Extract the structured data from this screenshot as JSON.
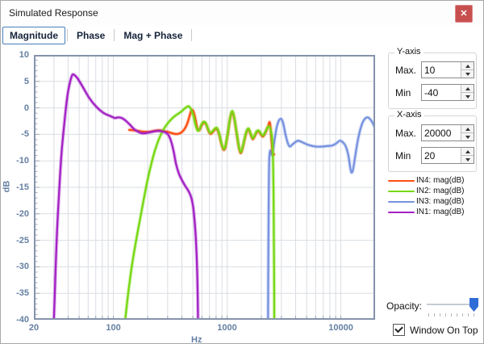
{
  "window": {
    "title": "Simulated Response",
    "close_glyph": "✕"
  },
  "tabs": [
    {
      "label": "Magnitude",
      "selected": true
    },
    {
      "label": "Phase",
      "selected": false
    },
    {
      "label": "Mag + Phase",
      "selected": false
    }
  ],
  "controls": {
    "y_axis": {
      "title": "Y-axis",
      "max_label": "Max.",
      "max_value": "10",
      "min_label": "Min",
      "min_value": "-40"
    },
    "x_axis": {
      "title": "X-axis",
      "max_label": "Max.",
      "max_value": "20000",
      "min_label": "Min",
      "min_value": "20"
    },
    "opacity": {
      "label": "Opacity:",
      "value_percent": 100
    },
    "window_on_top": {
      "label": "Window On Top",
      "checked": true
    }
  },
  "legend": [
    {
      "label": "IN4: mag(dB)",
      "color": "#fd4e12"
    },
    {
      "label": "IN2: mag(dB)",
      "color": "#76d813"
    },
    {
      "label": "IN3: mag(dB)",
      "color": "#7792e0"
    },
    {
      "label": "IN1: mag(dB)",
      "color": "#a322c4"
    }
  ],
  "chart_data": {
    "type": "line",
    "title": "",
    "xlabel": "Hz",
    "ylabel": "dB",
    "x_scale": "log",
    "xlim": [
      20,
      20000
    ],
    "ylim": [
      -40,
      10
    ],
    "x_tick_labels": [
      20,
      100,
      1000,
      10000
    ],
    "y_tick_labels": [
      10,
      5,
      0,
      -5,
      -10,
      -15,
      -20,
      -25,
      -30,
      -35,
      -40
    ],
    "grid": true,
    "legend_position": "right",
    "colors": {
      "grid": "#dadde3",
      "axis_text": "#647fa3",
      "border": "#8593ab"
    },
    "series": [
      {
        "name": "IN3: mag(dB)",
        "color": "#7792e0",
        "points": [
          [
            2290,
            -40
          ],
          [
            2302,
            -30
          ],
          [
            2316,
            -20
          ],
          [
            2330,
            -13
          ],
          [
            2352,
            -9.3
          ],
          [
            2390,
            -8.1
          ],
          [
            2430,
            -8.4
          ],
          [
            2470,
            -8.9
          ],
          [
            2530,
            -8.1
          ],
          [
            2620,
            -5.9
          ],
          [
            2720,
            -3.8
          ],
          [
            2850,
            -2.4
          ],
          [
            3000,
            -2.1
          ],
          [
            3120,
            -3
          ],
          [
            3250,
            -4.9
          ],
          [
            3400,
            -6.5
          ],
          [
            3560,
            -7.3
          ],
          [
            3800,
            -6.8
          ],
          [
            4200,
            -6.2
          ],
          [
            4700,
            -6.6
          ],
          [
            5200,
            -7
          ],
          [
            6000,
            -7.3
          ],
          [
            6800,
            -7.3
          ],
          [
            7600,
            -7.2
          ],
          [
            8400,
            -7.1
          ],
          [
            9100,
            -6.7
          ],
          [
            9800,
            -6.2
          ],
          [
            10400,
            -6.5
          ],
          [
            11000,
            -7.2
          ],
          [
            11600,
            -8.8
          ],
          [
            12100,
            -11.3
          ],
          [
            12400,
            -12.2
          ],
          [
            12800,
            -11.6
          ],
          [
            13400,
            -9
          ],
          [
            14200,
            -5.8
          ],
          [
            15200,
            -3.3
          ],
          [
            16200,
            -2.1
          ],
          [
            17200,
            -1.8
          ],
          [
            18200,
            -2.2
          ],
          [
            19100,
            -2.9
          ],
          [
            20000,
            -3.8
          ]
        ]
      },
      {
        "name": "IN4: mag(dB)",
        "color": "#fd4e12",
        "points": [
          [
            138,
            -4.15
          ],
          [
            160,
            -4.3
          ],
          [
            185,
            -4.5
          ],
          [
            210,
            -4.5
          ],
          [
            235,
            -4.3
          ],
          [
            262,
            -4.25
          ],
          [
            290,
            -4.45
          ],
          [
            318,
            -4.7
          ],
          [
            345,
            -4.9
          ],
          [
            372,
            -4.9
          ],
          [
            398,
            -4.6
          ],
          [
            422,
            -4
          ],
          [
            445,
            -3
          ],
          [
            465,
            -1.7
          ],
          [
            482,
            -0.6
          ],
          [
            495,
            -0.4
          ],
          [
            510,
            -0.9
          ],
          [
            528,
            -2.2
          ],
          [
            548,
            -3.9
          ],
          [
            570,
            -4.2
          ],
          [
            598,
            -3.3
          ],
          [
            625,
            -2.8
          ],
          [
            652,
            -3.1
          ],
          [
            682,
            -4.2
          ],
          [
            712,
            -4.9
          ],
          [
            746,
            -4.6
          ],
          [
            780,
            -4.1
          ],
          [
            815,
            -4
          ],
          [
            850,
            -5
          ],
          [
            890,
            -6.8
          ],
          [
            930,
            -7.9
          ],
          [
            965,
            -7.4
          ],
          [
            1010,
            -5.1
          ],
          [
            1060,
            -2.2
          ],
          [
            1105,
            -0.9
          ],
          [
            1150,
            -1.8
          ],
          [
            1200,
            -4.2
          ],
          [
            1260,
            -7.1
          ],
          [
            1310,
            -8.5
          ],
          [
            1360,
            -7.8
          ],
          [
            1420,
            -6.1
          ],
          [
            1480,
            -4.6
          ],
          [
            1545,
            -4.1
          ],
          [
            1615,
            -5.1
          ],
          [
            1680,
            -5.9
          ],
          [
            1745,
            -5.4
          ],
          [
            1820,
            -4.6
          ],
          [
            1900,
            -4.5
          ],
          [
            1990,
            -5.1
          ],
          [
            2070,
            -5.4
          ],
          [
            2160,
            -4.8
          ],
          [
            2240,
            -4
          ],
          [
            2300,
            -3.4
          ],
          [
            2355,
            -2.7
          ],
          [
            2395,
            -3.3
          ],
          [
            2430,
            -4.8
          ],
          [
            2465,
            -6.6
          ],
          [
            2505,
            -8.2
          ],
          [
            2550,
            -8.8
          ],
          [
            2590,
            -8.8
          ]
        ]
      },
      {
        "name": "IN2: mag(dB)",
        "color": "#76d813",
        "points": [
          [
            127,
            -40
          ],
          [
            135,
            -35
          ],
          [
            145,
            -30
          ],
          [
            157,
            -25.5
          ],
          [
            170,
            -21.5
          ],
          [
            184,
            -17.5
          ],
          [
            198,
            -14
          ],
          [
            213,
            -11
          ],
          [
            230,
            -8.3
          ],
          [
            250,
            -6
          ],
          [
            272,
            -4.3
          ],
          [
            298,
            -3
          ],
          [
            328,
            -2
          ],
          [
            360,
            -1.3
          ],
          [
            395,
            -0.7
          ],
          [
            430,
            0
          ],
          [
            458,
            0.3
          ],
          [
            480,
            -0.2
          ],
          [
            505,
            -1.5
          ],
          [
            530,
            -3.4
          ],
          [
            552,
            -4.3
          ],
          [
            575,
            -3.9
          ],
          [
            600,
            -3
          ],
          [
            625,
            -2.6
          ],
          [
            650,
            -2.9
          ],
          [
            680,
            -4
          ],
          [
            710,
            -4.7
          ],
          [
            745,
            -4.4
          ],
          [
            780,
            -3.9
          ],
          [
            815,
            -3.8
          ],
          [
            850,
            -4.8
          ],
          [
            890,
            -6.6
          ],
          [
            930,
            -7.7
          ],
          [
            965,
            -7.2
          ],
          [
            1010,
            -4.9
          ],
          [
            1060,
            -2
          ],
          [
            1105,
            -0.6
          ],
          [
            1150,
            -1.6
          ],
          [
            1200,
            -4
          ],
          [
            1260,
            -6.9
          ],
          [
            1310,
            -8.3
          ],
          [
            1360,
            -7.6
          ],
          [
            1420,
            -5.9
          ],
          [
            1480,
            -4.4
          ],
          [
            1545,
            -3.9
          ],
          [
            1615,
            -4.9
          ],
          [
            1680,
            -5.7
          ],
          [
            1745,
            -5.2
          ],
          [
            1820,
            -4.4
          ],
          [
            1900,
            -4.3
          ],
          [
            1990,
            -4.9
          ],
          [
            2070,
            -5.2
          ],
          [
            2160,
            -4.6
          ],
          [
            2250,
            -3.8
          ],
          [
            2340,
            -3.5
          ],
          [
            2420,
            -4.3
          ],
          [
            2465,
            -5.2
          ],
          [
            2505,
            -7
          ],
          [
            2535,
            -10
          ],
          [
            2560,
            -16
          ],
          [
            2578,
            -25
          ],
          [
            2592,
            -34
          ],
          [
            2598,
            -40
          ]
        ]
      },
      {
        "name": "IN1: mag(dB)",
        "color": "#a322c4",
        "points": [
          [
            30,
            -40
          ],
          [
            31,
            -31
          ],
          [
            32,
            -23
          ],
          [
            33.5,
            -15
          ],
          [
            35,
            -8.5
          ],
          [
            37,
            -3
          ],
          [
            39,
            1.5
          ],
          [
            41,
            4.3
          ],
          [
            43.5,
            6.2
          ],
          [
            46,
            6.1
          ],
          [
            49,
            5.4
          ],
          [
            54,
            3.9
          ],
          [
            60,
            2.2
          ],
          [
            67,
            0.8
          ],
          [
            75,
            -0.3
          ],
          [
            84,
            -1.1
          ],
          [
            93,
            -1.5
          ],
          [
            103,
            -1.9
          ],
          [
            110,
            -1.8
          ],
          [
            118,
            -1.9
          ],
          [
            128,
            -2.4
          ],
          [
            140,
            -3.2
          ],
          [
            152,
            -4
          ],
          [
            165,
            -4.5
          ],
          [
            180,
            -4.8
          ],
          [
            200,
            -4.7
          ],
          [
            220,
            -4.5
          ],
          [
            245,
            -4.35
          ],
          [
            270,
            -4.45
          ],
          [
            295,
            -4.8
          ],
          [
            310,
            -5.4
          ],
          [
            325,
            -6.6
          ],
          [
            340,
            -8.4
          ],
          [
            355,
            -10.5
          ],
          [
            375,
            -12.3
          ],
          [
            400,
            -13.6
          ],
          [
            430,
            -14.8
          ],
          [
            460,
            -15.8
          ],
          [
            485,
            -17
          ],
          [
            505,
            -19
          ],
          [
            525,
            -23
          ],
          [
            540,
            -28
          ],
          [
            550,
            -34
          ],
          [
            555,
            -40
          ]
        ]
      }
    ]
  }
}
